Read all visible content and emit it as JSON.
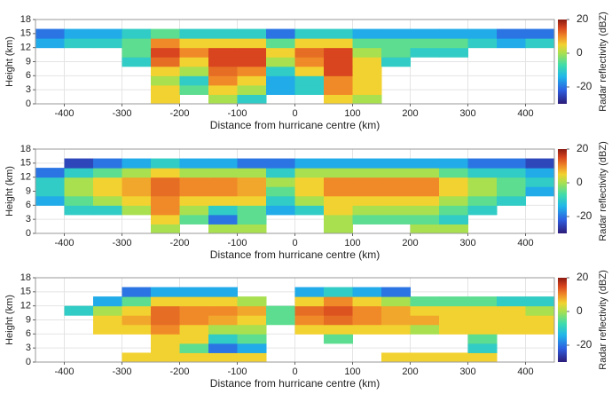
{
  "chart_data": [
    {
      "type": "heatmap",
      "xlabel": "Distance from hurricane centre (km)",
      "ylabel": "Height (km)",
      "colorbar_label": "Radar reflectivity (dBZ)",
      "xbins": [
        -450,
        -400,
        -350,
        -300,
        -250,
        -200,
        -150,
        -100,
        -50,
        0,
        50,
        100,
        150,
        200,
        250,
        300,
        350,
        400,
        450
      ],
      "ybins": [
        0,
        2,
        4,
        6,
        8,
        10,
        12,
        14,
        16,
        18
      ],
      "z": [
        [
          null,
          null,
          null,
          null,
          5,
          null,
          0,
          -10,
          null,
          null,
          5,
          0,
          null,
          null,
          null,
          null,
          null,
          null
        ],
        [
          null,
          null,
          null,
          null,
          5,
          -5,
          5,
          0,
          -15,
          -10,
          10,
          5,
          null,
          null,
          null,
          null,
          null,
          null
        ],
        [
          null,
          null,
          null,
          null,
          0,
          -10,
          10,
          5,
          -15,
          -10,
          10,
          5,
          null,
          null,
          null,
          null,
          null,
          null
        ],
        [
          null,
          null,
          null,
          null,
          5,
          0,
          12,
          10,
          -10,
          5,
          15,
          5,
          null,
          null,
          null,
          null,
          null,
          null
        ],
        [
          null,
          null,
          null,
          -10,
          12,
          5,
          15,
          15,
          0,
          10,
          15,
          5,
          -10,
          null,
          null,
          null,
          null,
          null
        ],
        [
          null,
          null,
          null,
          -5,
          15,
          10,
          15,
          15,
          5,
          12,
          15,
          0,
          -5,
          -10,
          -10,
          null,
          null,
          null
        ],
        [
          -15,
          -10,
          -10,
          -5,
          10,
          5,
          5,
          5,
          -5,
          5,
          5,
          -5,
          -5,
          -5,
          -5,
          -10,
          -15,
          -10
        ],
        [
          -20,
          -15,
          -15,
          -10,
          -5,
          -10,
          -10,
          -10,
          -20,
          -10,
          -10,
          -15,
          -15,
          -15,
          -15,
          -15,
          -20,
          -20
        ],
        [
          null,
          null,
          null,
          null,
          null,
          null,
          null,
          null,
          null,
          null,
          null,
          null,
          null,
          null,
          null,
          null,
          null,
          null
        ]
      ],
      "xlim": [
        -450,
        450
      ],
      "xticks": [
        -400,
        -300,
        -200,
        -100,
        0,
        100,
        200,
        300,
        400
      ],
      "ylim": [
        0,
        18
      ],
      "yticks": [
        0,
        3,
        6,
        9,
        12,
        15,
        18
      ],
      "clim": [
        -30,
        20
      ],
      "cticks": [
        -20,
        0,
        20
      ],
      "grid": true
    },
    {
      "type": "heatmap",
      "xlabel": "Distance from hurricane centre (km)",
      "ylabel": "Height (km)",
      "colorbar_label": "Radar reflectivity (dBZ)",
      "xbins": [
        -450,
        -400,
        -350,
        -300,
        -250,
        -200,
        -150,
        -100,
        -50,
        0,
        50,
        100,
        150,
        200,
        250,
        300,
        350,
        400,
        450
      ],
      "ybins": [
        0,
        2,
        4,
        6,
        8,
        10,
        12,
        14,
        16,
        18
      ],
      "z": [
        [
          null,
          null,
          null,
          null,
          0,
          null,
          0,
          0,
          null,
          null,
          0,
          null,
          null,
          0,
          0,
          null,
          null,
          null
        ],
        [
          null,
          null,
          null,
          null,
          5,
          -5,
          -20,
          -5,
          null,
          null,
          0,
          -5,
          -5,
          -5,
          -10,
          null,
          null,
          null
        ],
        [
          null,
          -10,
          -10,
          0,
          10,
          0,
          -10,
          -5,
          -15,
          -10,
          5,
          0,
          0,
          0,
          -5,
          -10,
          null,
          null
        ],
        [
          -15,
          -5,
          0,
          5,
          10,
          5,
          5,
          5,
          -10,
          0,
          5,
          5,
          5,
          5,
          0,
          -5,
          -10,
          null
        ],
        [
          -10,
          0,
          5,
          8,
          12,
          10,
          10,
          8,
          -5,
          5,
          10,
          10,
          10,
          10,
          5,
          0,
          -5,
          -15
        ],
        [
          -10,
          0,
          5,
          8,
          12,
          10,
          10,
          8,
          0,
          5,
          10,
          10,
          10,
          10,
          5,
          0,
          -5,
          -10
        ],
        [
          -20,
          -10,
          -5,
          0,
          5,
          0,
          0,
          0,
          -10,
          0,
          0,
          0,
          0,
          0,
          -5,
          -10,
          -10,
          -15
        ],
        [
          null,
          -25,
          -20,
          -15,
          -10,
          -15,
          -15,
          -20,
          -20,
          -15,
          -15,
          -15,
          -15,
          -15,
          -15,
          -20,
          -20,
          -25
        ],
        [
          null,
          null,
          null,
          null,
          null,
          null,
          null,
          null,
          null,
          null,
          null,
          null,
          null,
          null,
          null,
          null,
          null,
          null
        ]
      ],
      "xlim": [
        -450,
        450
      ],
      "xticks": [
        -400,
        -300,
        -200,
        -100,
        0,
        100,
        200,
        300,
        400
      ],
      "ylim": [
        0,
        18
      ],
      "yticks": [
        0,
        3,
        6,
        9,
        12,
        15,
        18
      ],
      "clim": [
        -30,
        20
      ],
      "cticks": [
        -20,
        0,
        20
      ],
      "grid": true
    },
    {
      "type": "heatmap",
      "xlabel": "Distance from hurricane centre (km)",
      "ylabel": "Height (km)",
      "colorbar_label": "Radar reflectivity (dBZ)",
      "xbins": [
        -450,
        -400,
        -350,
        -300,
        -250,
        -200,
        -150,
        -100,
        -50,
        0,
        50,
        100,
        150,
        200,
        250,
        300,
        350,
        400,
        450
      ],
      "ybins": [
        0,
        2,
        4,
        6,
        8,
        10,
        12,
        14,
        16,
        18
      ],
      "z": [
        [
          null,
          null,
          null,
          5,
          5,
          5,
          5,
          5,
          null,
          null,
          null,
          null,
          5,
          5,
          5,
          5,
          null,
          null
        ],
        [
          null,
          null,
          null,
          null,
          5,
          -5,
          -20,
          -15,
          null,
          null,
          null,
          null,
          null,
          null,
          null,
          -10,
          null,
          null
        ],
        [
          null,
          null,
          null,
          null,
          5,
          5,
          -10,
          -5,
          null,
          null,
          -5,
          null,
          null,
          null,
          null,
          -5,
          null,
          null
        ],
        [
          null,
          null,
          5,
          5,
          10,
          5,
          0,
          0,
          null,
          5,
          5,
          5,
          5,
          0,
          5,
          5,
          5,
          5
        ],
        [
          null,
          null,
          5,
          8,
          12,
          10,
          8,
          5,
          -5,
          10,
          12,
          10,
          8,
          8,
          5,
          5,
          5,
          5
        ],
        [
          null,
          -10,
          0,
          5,
          12,
          10,
          10,
          8,
          -5,
          12,
          14,
          10,
          8,
          5,
          5,
          5,
          5,
          0
        ],
        [
          null,
          null,
          -15,
          -5,
          5,
          5,
          5,
          0,
          null,
          5,
          10,
          5,
          0,
          -5,
          -5,
          -5,
          -10,
          -10
        ],
        [
          null,
          null,
          null,
          -20,
          -15,
          -15,
          -15,
          null,
          null,
          -15,
          -10,
          -15,
          -20,
          null,
          null,
          null,
          null,
          null
        ],
        [
          null,
          null,
          null,
          null,
          null,
          null,
          null,
          null,
          null,
          null,
          null,
          null,
          null,
          null,
          null,
          null,
          null,
          null
        ]
      ],
      "xlim": [
        -450,
        450
      ],
      "xticks": [
        -400,
        -300,
        -200,
        -100,
        0,
        100,
        200,
        300,
        400
      ],
      "ylim": [
        0,
        18
      ],
      "yticks": [
        0,
        3,
        6,
        9,
        12,
        15,
        18
      ],
      "clim": [
        -30,
        20
      ],
      "cticks": [
        -20,
        0,
        20
      ],
      "grid": true
    }
  ]
}
